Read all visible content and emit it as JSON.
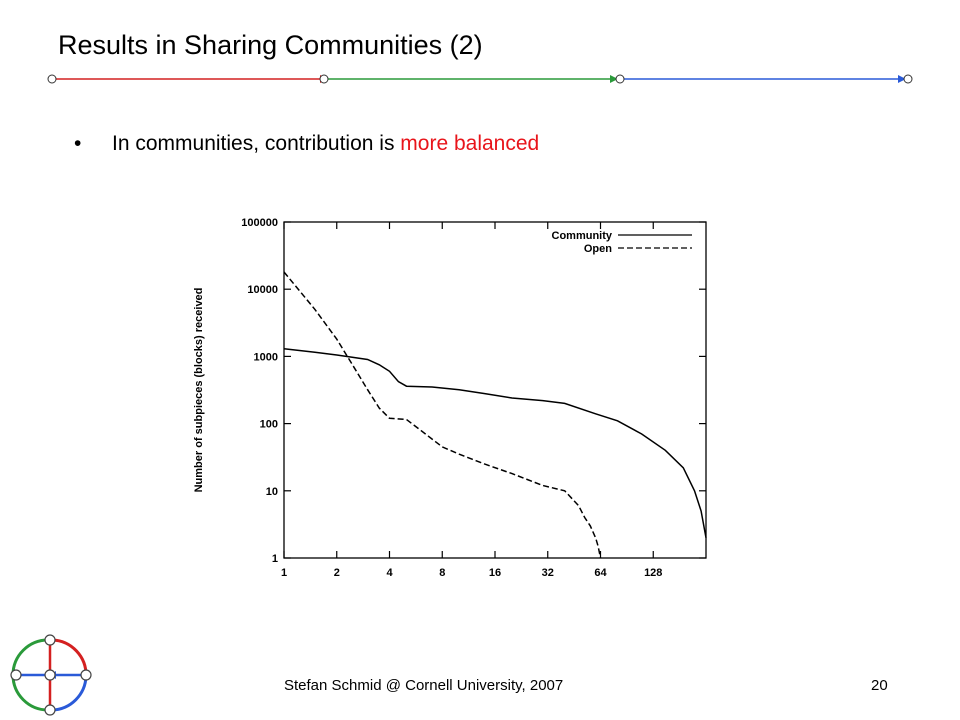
{
  "slide": {
    "title": "Results in Sharing Communities (2)",
    "bullet_symbol": "•",
    "bullet_text": "In communities, contribution is ",
    "bullet_highlight": "more balanced",
    "highlight_color": "#e8141a",
    "footer": "Stefan Schmid @ Cornell University, 2007",
    "page_number": "20",
    "divider_colors": [
      "#d42020",
      "#2a9a3a",
      "#2a5ad8"
    ]
  },
  "chart_data": {
    "type": "line",
    "xscale": "log2",
    "yscale": "log10",
    "xlim": [
      1,
      256
    ],
    "ylim": [
      1,
      100000
    ],
    "x_ticks": [
      1,
      2,
      4,
      8,
      16,
      32,
      64,
      128
    ],
    "x_tick_labels": [
      "1",
      "2",
      "4",
      "8",
      "16",
      "32",
      "64",
      "128"
    ],
    "y_ticks": [
      1,
      10,
      100,
      1000,
      10000,
      100000
    ],
    "y_tick_labels": [
      "1",
      "10",
      "100",
      "1000",
      "10000",
      "100000"
    ],
    "ylabel": "Number of subpieces (blocks) received",
    "xlabel": "",
    "legend_position": "top-right",
    "series": [
      {
        "name": "Community",
        "style": "solid",
        "x": [
          1,
          1.5,
          2,
          3,
          3.5,
          4,
          4.5,
          5,
          7,
          10,
          14,
          20,
          30,
          40,
          60,
          80,
          110,
          150,
          190,
          220,
          240,
          256
        ],
        "y": [
          1300,
          1150,
          1050,
          900,
          750,
          600,
          420,
          360,
          350,
          320,
          280,
          240,
          220,
          200,
          140,
          110,
          70,
          40,
          22,
          10,
          5,
          2
        ]
      },
      {
        "name": "Open",
        "style": "dashed",
        "x": [
          1,
          1.5,
          2,
          2.5,
          3,
          3.5,
          4,
          5,
          6,
          8,
          10,
          14,
          20,
          30,
          40,
          48,
          52,
          56,
          60,
          62,
          64
        ],
        "y": [
          18000,
          5000,
          1800,
          700,
          320,
          170,
          120,
          115,
          80,
          45,
          35,
          25,
          18,
          12,
          10,
          6,
          4,
          3,
          2,
          1.5,
          1
        ]
      }
    ]
  }
}
